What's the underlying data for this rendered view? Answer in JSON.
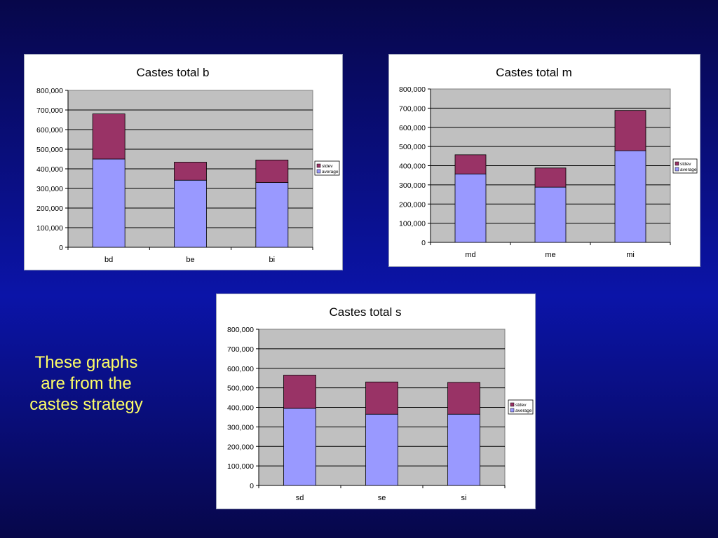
{
  "chart_data": [
    {
      "type": "bar",
      "stacked": true,
      "title": "Castes total b",
      "categories": [
        "bd",
        "be",
        "bi"
      ],
      "series": [
        {
          "name": "average",
          "color": "#9999ff",
          "values": [
            450000,
            342000,
            330000
          ]
        },
        {
          "name": "stdev",
          "color": "#993366",
          "values": [
            230000,
            92000,
            115000
          ]
        }
      ],
      "ylim": [
        0,
        800000
      ],
      "yticks": [
        "0",
        "100,000",
        "200,000",
        "300,000",
        "400,000",
        "500,000",
        "600,000",
        "700,000",
        "800,000"
      ],
      "grid": true,
      "legend": "right",
      "legend_entries": [
        "stdev",
        "average"
      ],
      "plot_background": "#c0c0c0"
    },
    {
      "type": "bar",
      "stacked": true,
      "title": "Castes total m",
      "categories": [
        "md",
        "me",
        "mi"
      ],
      "series": [
        {
          "name": "average",
          "color": "#9999ff",
          "values": [
            357000,
            288000,
            478000
          ]
        },
        {
          "name": "stdev",
          "color": "#993366",
          "values": [
            100000,
            100000,
            210000
          ]
        }
      ],
      "ylim": [
        0,
        800000
      ],
      "yticks": [
        "0",
        "100,000",
        "200,000",
        "300,000",
        "400,000",
        "500,000",
        "600,000",
        "700,000",
        "800,000"
      ],
      "grid": true,
      "legend": "right",
      "legend_entries": [
        "stdev",
        "average"
      ],
      "plot_background": "#c0c0c0"
    },
    {
      "type": "bar",
      "stacked": true,
      "title": "Castes total s",
      "categories": [
        "sd",
        "se",
        "si"
      ],
      "series": [
        {
          "name": "average",
          "color": "#9999ff",
          "values": [
            395000,
            365000,
            365000
          ]
        },
        {
          "name": "stdev",
          "color": "#993366",
          "values": [
            170000,
            165000,
            163000
          ]
        }
      ],
      "ylim": [
        0,
        800000
      ],
      "yticks": [
        "0",
        "100,000",
        "200,000",
        "300,000",
        "400,000",
        "500,000",
        "600,000",
        "700,000",
        "800,000"
      ],
      "grid": true,
      "legend": "right",
      "legend_entries": [
        "stdev",
        "average"
      ],
      "plot_background": "#c0c0c0"
    }
  ],
  "caption": "These graphs are from the castes strategy",
  "colors": {
    "caption_text": "#ffff66",
    "plot_area": "#c0c0c0",
    "average": "#9999ff",
    "stdev": "#993366"
  }
}
